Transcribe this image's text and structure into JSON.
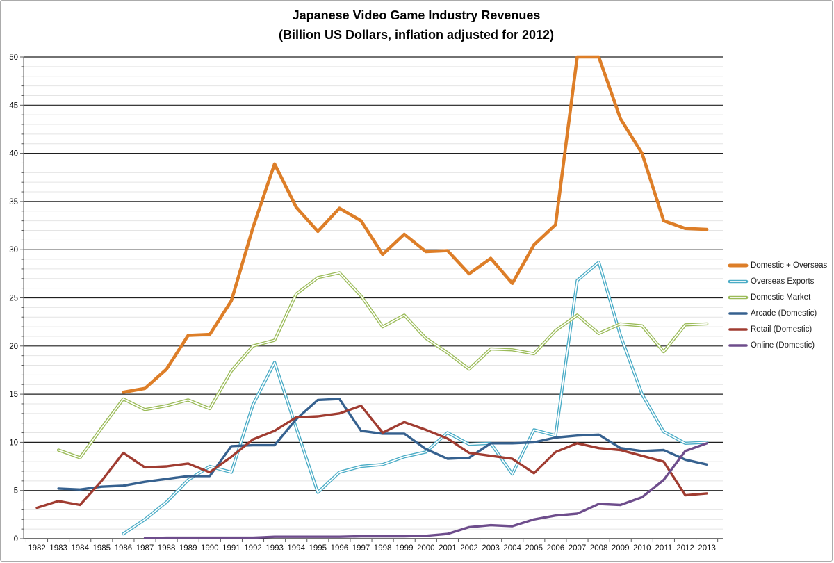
{
  "window": {
    "background": "#FFFFFF",
    "border_color": "#ABABAB"
  },
  "chart_data": {
    "type": "line",
    "title": "Japanese Video Game Industry Revenues",
    "subtitle": "(Billion US Dollars, inflation adjusted for 2012)",
    "x": [
      1982,
      1983,
      1984,
      1985,
      1986,
      1987,
      1988,
      1989,
      1990,
      1991,
      1992,
      1993,
      1994,
      1995,
      1996,
      1997,
      1998,
      1999,
      2000,
      2001,
      2002,
      2003,
      2004,
      2005,
      2006,
      2007,
      2008,
      2009,
      2010,
      2011,
      2012,
      2013
    ],
    "ylim": [
      0,
      50
    ],
    "y_ticks": [
      0,
      5,
      10,
      15,
      20,
      25,
      30,
      35,
      40,
      45,
      50
    ],
    "y_minor_step": 1,
    "grid": {
      "major": true,
      "minor": true
    },
    "legend_position": "right",
    "axis_color": "#595959",
    "major_grid_color": "#1f1f1f",
    "minor_grid_color": "#e4e4e4",
    "series": [
      {
        "name": "Domestic + Overseas",
        "color": "#DD7E28",
        "style": "solid-thick",
        "values": [
          null,
          null,
          null,
          null,
          15.2,
          15.6,
          17.6,
          21.1,
          21.2,
          24.7,
          32.3,
          38.9,
          34.4,
          31.9,
          34.3,
          33.0,
          29.5,
          31.6,
          29.8,
          29.9,
          27.5,
          29.1,
          26.5,
          30.5,
          32.6,
          51.5,
          50.3,
          43.6,
          40.0,
          33.0,
          32.2,
          32.1
        ]
      },
      {
        "name": "Overseas Exports",
        "color": "#4BACC6",
        "style": "outlined",
        "values": [
          null,
          null,
          null,
          null,
          0.5,
          2.0,
          3.8,
          6.1,
          7.5,
          6.9,
          13.9,
          18.3,
          11.5,
          4.8,
          6.9,
          7.5,
          7.7,
          8.5,
          9.0,
          11.0,
          9.8,
          9.9,
          6.7,
          11.3,
          10.7,
          26.8,
          28.7,
          21.1,
          15.0,
          11.1,
          9.9,
          10.0
        ]
      },
      {
        "name": "Domestic Market",
        "color": "#9BBB59",
        "style": "outlined",
        "values": [
          null,
          9.2,
          8.4,
          11.5,
          14.5,
          13.4,
          13.8,
          14.4,
          13.5,
          17.4,
          20.0,
          20.6,
          25.4,
          27.1,
          27.6,
          25.2,
          22.0,
          23.2,
          20.8,
          19.3,
          17.6,
          19.7,
          19.6,
          19.2,
          21.6,
          23.2,
          21.3,
          22.3,
          22.1,
          19.4,
          22.2,
          22.3
        ]
      },
      {
        "name": "Arcade (Domestic)",
        "color": "#36618F",
        "style": "solid",
        "values": [
          null,
          5.2,
          5.1,
          5.4,
          5.5,
          5.9,
          6.2,
          6.5,
          6.5,
          9.6,
          9.7,
          9.7,
          12.4,
          14.4,
          14.5,
          11.2,
          10.9,
          10.9,
          9.3,
          8.3,
          8.4,
          9.9,
          9.9,
          10.0,
          10.5,
          10.7,
          10.8,
          9.4,
          9.1,
          9.2,
          8.2,
          7.7
        ]
      },
      {
        "name": "Retail (Domestic)",
        "color": "#A03C31",
        "style": "solid",
        "values": [
          3.2,
          3.9,
          3.5,
          6.0,
          8.9,
          7.4,
          7.5,
          7.8,
          6.9,
          8.5,
          10.3,
          11.2,
          12.6,
          12.7,
          13.0,
          13.8,
          11.0,
          12.1,
          11.3,
          10.4,
          8.9,
          8.6,
          8.3,
          6.8,
          9.0,
          9.9,
          9.4,
          9.2,
          8.6,
          8.0,
          4.5,
          4.7
        ]
      },
      {
        "name": "Online (Domestic)",
        "color": "#6E4D8C",
        "style": "solid",
        "values": [
          null,
          null,
          null,
          null,
          null,
          0.05,
          0.1,
          0.1,
          0.1,
          0.1,
          0.1,
          0.2,
          0.2,
          0.2,
          0.2,
          0.25,
          0.25,
          0.25,
          0.3,
          0.5,
          1.2,
          1.4,
          1.3,
          2.0,
          2.4,
          2.6,
          3.6,
          3.5,
          4.3,
          6.1,
          9.1,
          9.9
        ]
      }
    ]
  }
}
